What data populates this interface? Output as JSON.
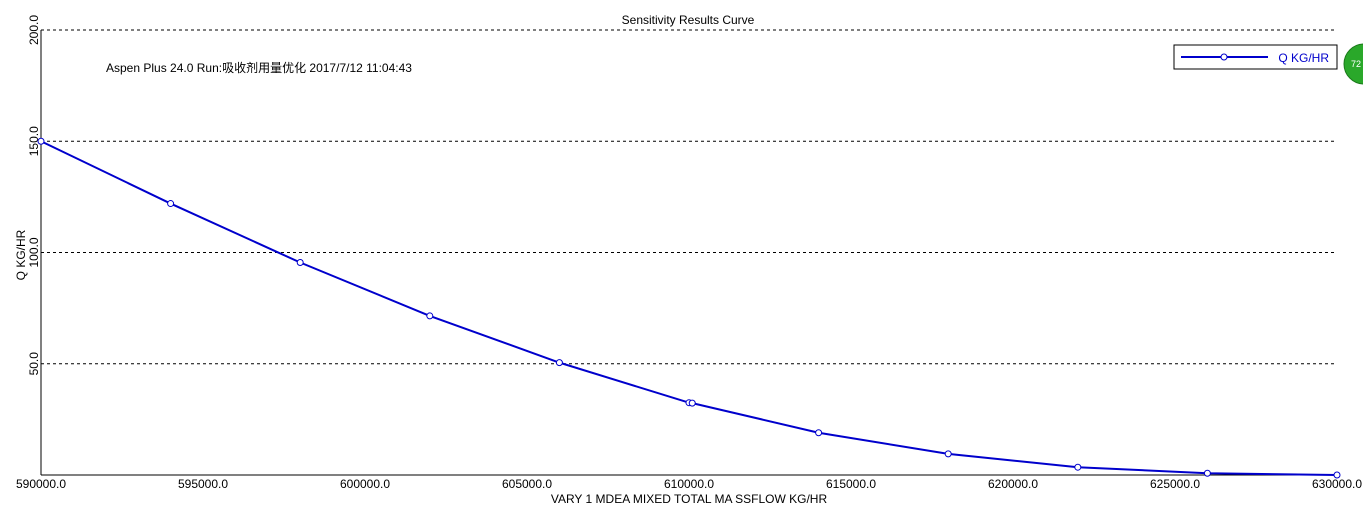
{
  "chart_data": {
    "type": "line",
    "title": "Sensitivity Results Curve",
    "annotation": "Aspen Plus 24.0 Run:吸收剂用量优化 2017/7/12 11:04:43",
    "xlabel": "VARY   1 MDEA MIXED TOTAL MA SSFLOW KG/HR",
    "ylabel": "Q KG/HR",
    "xlim": [
      590000,
      630000
    ],
    "ylim": [
      0,
      200
    ],
    "x_ticks": [
      590000,
      595000,
      600000,
      605000,
      610000,
      615000,
      620000,
      625000,
      630000
    ],
    "x_tick_labels": [
      "590000.0",
      "595000.0",
      "600000.0",
      "605000.0",
      "610000.0",
      "615000.0",
      "620000.0",
      "625000.0",
      "630000.0"
    ],
    "y_ticks": [
      50,
      100,
      150,
      200
    ],
    "y_tick_labels": [
      "50.0",
      "100.0",
      "150.0",
      "200.0"
    ],
    "grid": "horizontal-dashed",
    "legend_position": "top-right",
    "series": [
      {
        "name": "Q KG/HR",
        "color": "#0000cc",
        "marker": "hollow-circle",
        "x": [
          590000,
          594000,
          598000,
          602000,
          606000,
          610000,
          610100,
          614000,
          618000,
          622000,
          626000,
          630000
        ],
        "y": [
          150,
          122,
          95.5,
          71.5,
          50.5,
          32.5,
          32.3,
          19,
          9.5,
          3.5,
          0.8,
          0
        ]
      }
    ]
  },
  "badge": {
    "text": "72",
    "color": "#2aa82a"
  }
}
